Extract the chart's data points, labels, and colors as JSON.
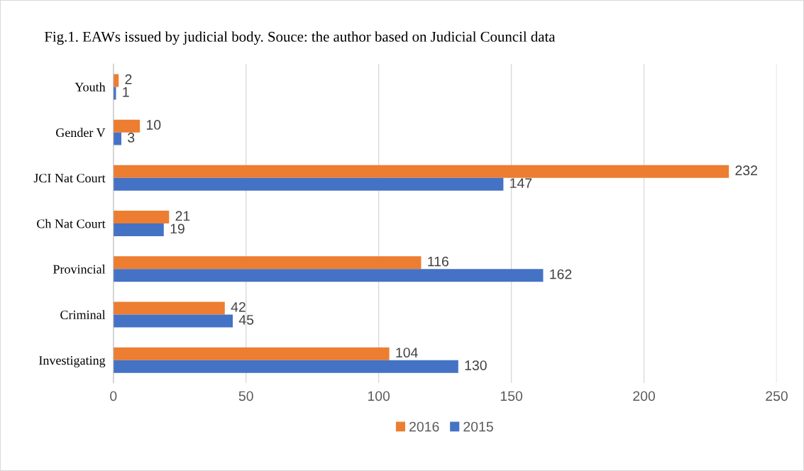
{
  "chart_data": {
    "type": "bar",
    "orientation": "horizontal",
    "title": "Fig.1. EAWs issued by judicial body. Souce: the author based on Judicial Council data",
    "categories": [
      "Youth",
      "Gender V",
      "JCI Nat Court",
      "Ch Nat Court",
      "Provincial",
      "Criminal",
      "Investigating"
    ],
    "series": [
      {
        "name": "2016",
        "color": "#ed7d31",
        "values": [
          2,
          10,
          232,
          21,
          116,
          42,
          104
        ]
      },
      {
        "name": "2015",
        "color": "#4472c4",
        "values": [
          1,
          3,
          147,
          19,
          162,
          45,
          130
        ]
      }
    ],
    "xlim": [
      0,
      250
    ],
    "xticks": [
      0,
      50,
      100,
      150,
      200,
      250
    ],
    "grid": "x",
    "legend": "bottom",
    "data_labels": true
  }
}
